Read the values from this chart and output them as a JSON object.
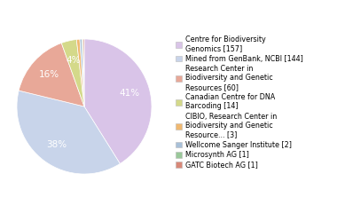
{
  "labels": [
    "Centre for Biodiversity\nGenomics [157]",
    "Mined from GenBank, NCBI [144]",
    "Research Center in\nBiodiversity and Genetic\nResources [60]",
    "Canadian Centre for DNA\nBarcoding [14]",
    "CIBIO, Research Center in\nBiodiversity and Genetic\nResource... [3]",
    "Wellcome Sanger Institute [2]",
    "Microsynth AG [1]",
    "GATC Biotech AG [1]"
  ],
  "values": [
    157,
    144,
    60,
    14,
    3,
    2,
    1,
    1
  ],
  "colors": [
    "#d9c4e8",
    "#c8d4ea",
    "#e8a898",
    "#d4d98a",
    "#f0b870",
    "#a8c0d8",
    "#9ac89a",
    "#d88878"
  ],
  "background_color": "#ffffff",
  "figsize": [
    3.8,
    2.4
  ],
  "dpi": 100,
  "legend_fontsize": 5.8,
  "pct_fontsize": 7.5,
  "pct_threshold": 3.5
}
